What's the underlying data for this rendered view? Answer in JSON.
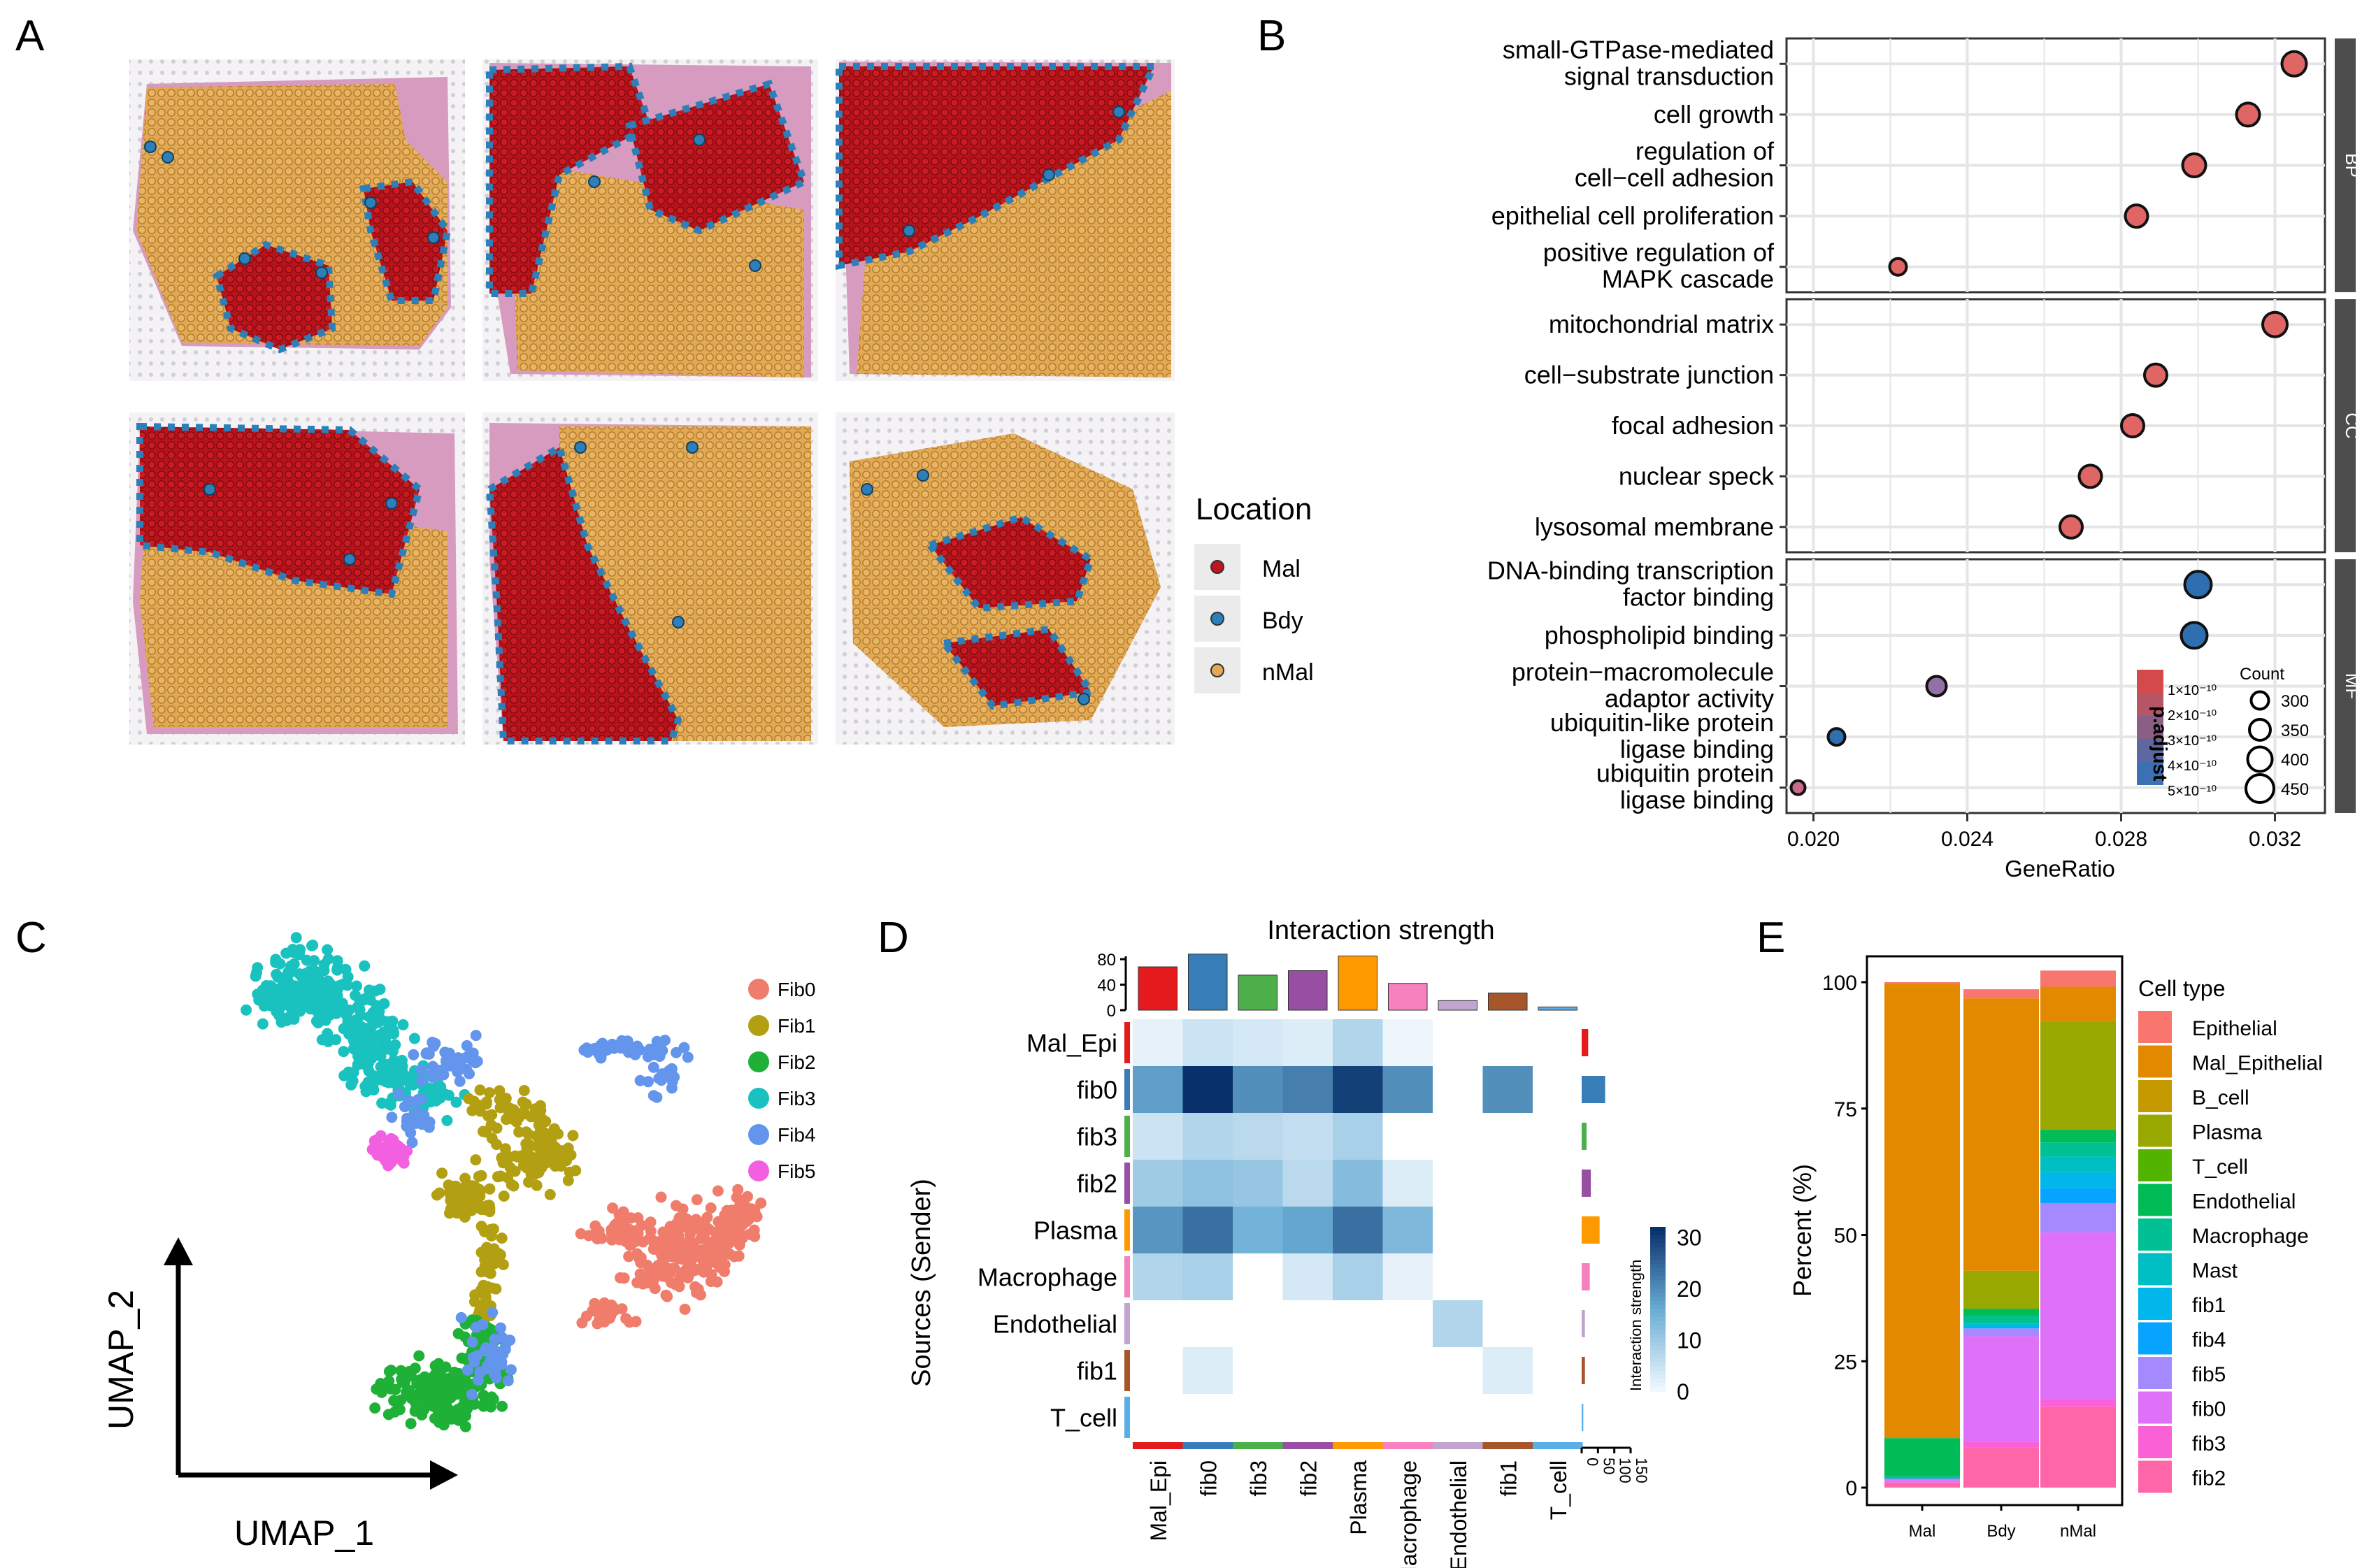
{
  "panel_labels": [
    "A",
    "B",
    "C",
    "D",
    "E"
  ],
  "panelA": {
    "legend_title": "Location",
    "legend": [
      {
        "label": "Mal",
        "color": "#c0151e"
      },
      {
        "label": "Bdy",
        "color": "#2c7fb8"
      },
      {
        "label": "nMal",
        "color": "#e3a854"
      }
    ],
    "tissue_color": "#d69bbf"
  },
  "chart_data": [
    {
      "id": "B",
      "type": "scatter",
      "title": "",
      "xlabel": "GeneRatio",
      "xlim": [
        0.0193,
        0.0333
      ],
      "xticks": [
        0.02,
        0.024,
        0.028,
        0.032
      ],
      "xtick_labels": [
        "0.020",
        "0.024",
        "0.028",
        "0.032"
      ],
      "size_legend_title": "Count",
      "size_legend": [
        300,
        350,
        400,
        450
      ],
      "color_legend_title": "p.adjust",
      "color_legend_ticks": [
        "1×10⁻¹⁰",
        "2×10⁻¹⁰",
        "3×10⁻¹⁰",
        "4×10⁻¹⁰",
        "5×10⁻¹⁰"
      ],
      "facets": [
        {
          "name": "BP",
          "terms": [
            {
              "label": "small-GTPase-mediated signal transduction",
              "x": 0.0325,
              "count": 400,
              "color": "#e06666"
            },
            {
              "label": "cell growth",
              "x": 0.0313,
              "count": 380,
              "color": "#e06666"
            },
            {
              "label": "regulation of cell−cell adhesion",
              "x": 0.0299,
              "count": 380,
              "color": "#e06666"
            },
            {
              "label": "epithelial cell proliferation",
              "x": 0.0284,
              "count": 370,
              "color": "#e06666"
            },
            {
              "label": "positive regulation of MAPK cascade",
              "x": 0.0222,
              "count": 290,
              "color": "#e06666"
            }
          ]
        },
        {
          "name": "CC",
          "terms": [
            {
              "label": "mitochondrial matrix",
              "x": 0.032,
              "count": 400,
              "color": "#e06666"
            },
            {
              "label": "cell−substrate junction",
              "x": 0.0289,
              "count": 370,
              "color": "#e06666"
            },
            {
              "label": "focal adhesion",
              "x": 0.0283,
              "count": 370,
              "color": "#e06666"
            },
            {
              "label": "nuclear speck",
              "x": 0.0272,
              "count": 370,
              "color": "#e06666"
            },
            {
              "label": "lysosomal membrane",
              "x": 0.0267,
              "count": 370,
              "color": "#e06666"
            }
          ]
        },
        {
          "name": "MF",
          "terms": [
            {
              "label": "DNA-binding transcription factor binding",
              "x": 0.03,
              "count": 430,
              "color": "#2f6fb0"
            },
            {
              "label": "phospholipid binding",
              "x": 0.0299,
              "count": 420,
              "color": "#2f6fb0"
            },
            {
              "label": "protein−macromolecule adaptor activity",
              "x": 0.0232,
              "count": 330,
              "color": "#9370a8"
            },
            {
              "label": "ubiquitin-like protein ligase binding",
              "x": 0.0206,
              "count": 290,
              "color": "#2f6fb0"
            },
            {
              "label": "ubiquitin protein ligase binding",
              "x": 0.0196,
              "count": 250,
              "color": "#c96a8a"
            }
          ]
        }
      ]
    },
    {
      "id": "C",
      "type": "scatter",
      "xlabel": "UMAP_1",
      "ylabel": "UMAP_2",
      "series": [
        {
          "name": "Fib0",
          "color": "#f07c6c"
        },
        {
          "name": "Fib1",
          "color": "#b3a012"
        },
        {
          "name": "Fib2",
          "color": "#1fb037"
        },
        {
          "name": "Fib3",
          "color": "#19c2bf"
        },
        {
          "name": "Fib4",
          "color": "#6495ed"
        },
        {
          "name": "Fib5",
          "color": "#f25fe0"
        }
      ]
    },
    {
      "id": "D",
      "type": "heatmap",
      "title": "Interaction strength",
      "ylabel": "Sources (Sender)",
      "colorbar_title": "Interaction strength",
      "colorbar_ticks": [
        0,
        10,
        20,
        30
      ],
      "top_bar_ticks": [
        0,
        40,
        80
      ],
      "right_bar_ticks": [
        0,
        50,
        100,
        150
      ],
      "rows": [
        "Mal_Epi",
        "fib0",
        "fib3",
        "fib2",
        "Plasma",
        "Macrophage",
        "Endothelial",
        "fib1",
        "T_cell"
      ],
      "cols": [
        "Mal_Epi",
        "fib0",
        "fib3",
        "fib2",
        "Plasma",
        "Macrophage",
        "Endothelial",
        "fib1",
        "T_cell"
      ],
      "group_colors": [
        "#e41a1c",
        "#377eb8",
        "#4daf4a",
        "#984ea3",
        "#ff9900",
        "#f781bf",
        "#c2a5cf",
        "#a6562a",
        "#5aaee8"
      ],
      "top_values": [
        68,
        88,
        55,
        62,
        85,
        42,
        15,
        27,
        5
      ],
      "right_values": [
        20,
        72,
        15,
        28,
        55,
        25,
        10,
        10,
        5
      ],
      "values": [
        [
          2,
          5,
          4,
          3,
          8,
          1,
          0,
          0,
          0
        ],
        [
          18,
          32,
          20,
          22,
          30,
          20,
          0,
          20,
          0
        ],
        [
          5,
          8,
          7,
          6,
          9,
          0,
          0,
          0,
          0
        ],
        [
          10,
          12,
          11,
          7,
          13,
          3,
          0,
          0,
          0
        ],
        [
          19,
          24,
          15,
          17,
          24,
          14,
          0,
          0,
          0
        ],
        [
          8,
          9,
          0,
          4,
          9,
          2,
          0,
          0,
          0
        ],
        [
          0,
          0,
          0,
          0,
          0,
          0,
          8,
          0,
          0
        ],
        [
          0,
          3,
          0,
          0,
          0,
          0,
          0,
          3,
          0
        ],
        [
          0,
          0,
          0,
          0,
          0,
          0,
          0,
          0,
          0
        ]
      ]
    },
    {
      "id": "E",
      "type": "bar",
      "stacked": true,
      "ylabel": "Percent (%)",
      "ylim": [
        0,
        100
      ],
      "yticks": [
        0,
        25,
        50,
        75,
        100
      ],
      "categories": [
        "Mal",
        "Bdy",
        "nMal"
      ],
      "legend_title": "Cell type",
      "series": [
        {
          "name": "Epithelial",
          "color": "#f8766d",
          "values": [
            0.3,
            1.8,
            3.2
          ]
        },
        {
          "name": "Mal_Epithelial",
          "color": "#e38900",
          "values": [
            89.9,
            53.9,
            6.8
          ]
        },
        {
          "name": "B_cell",
          "color": "#c49a00",
          "values": [
            0.0,
            0.0,
            0.0
          ]
        },
        {
          "name": "Plasma",
          "color": "#99a800",
          "values": [
            0.0,
            7.5,
            21.5
          ]
        },
        {
          "name": "T_cell",
          "color": "#53b400",
          "values": [
            0.0,
            0.0,
            0.0
          ]
        },
        {
          "name": "Endothelial",
          "color": "#00bc56",
          "values": [
            7.5,
            1.5,
            2.5
          ]
        },
        {
          "name": "Macrophage",
          "color": "#00c094",
          "values": [
            0.5,
            1.5,
            2.8
          ]
        },
        {
          "name": "Mast",
          "color": "#00bfc4",
          "values": [
            0.0,
            0.3,
            3.2
          ]
        },
        {
          "name": "fib1",
          "color": "#00b6eb",
          "values": [
            0.0,
            0.3,
            3.0
          ]
        },
        {
          "name": "fib4",
          "color": "#06a4ff",
          "values": [
            0.0,
            0.3,
            3.0
          ]
        },
        {
          "name": "fib5",
          "color": "#a58aff",
          "values": [
            0.3,
            1.5,
            5.8
          ]
        },
        {
          "name": "fib0",
          "color": "#df70f8",
          "values": [
            0.5,
            21.0,
            33.0
          ]
        },
        {
          "name": "fib3",
          "color": "#fb61d7",
          "values": [
            0.0,
            1.0,
            1.5
          ]
        },
        {
          "name": "fib2",
          "color": "#ff66a8",
          "values": [
            1.0,
            8.0,
            16.0
          ]
        }
      ]
    }
  ]
}
